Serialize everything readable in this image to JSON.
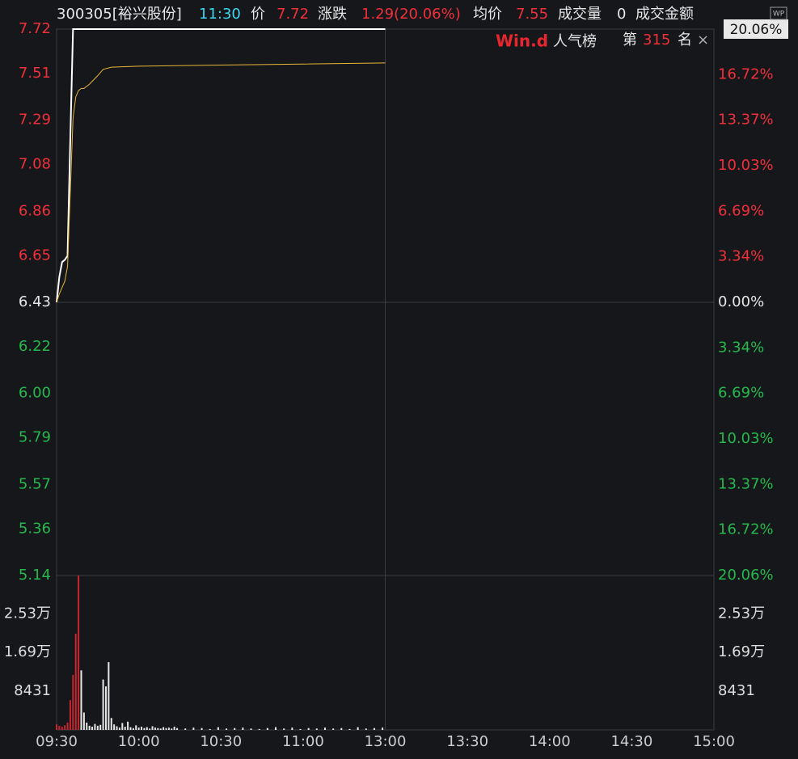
{
  "header": {
    "code": "300305[裕兴股份]",
    "time": "11:30",
    "price_label": "价",
    "price": "7.72",
    "change_label": "涨跌",
    "change": "1.29(20.06%)",
    "avg_label": "均价",
    "avg": "7.55",
    "volume_label": "成交量",
    "volume": "0",
    "amount_label": "成交金额",
    "badge": "20.06%",
    "icon": "WP"
  },
  "ranking": {
    "brand": "Win.d",
    "title": "人气榜",
    "prefix": "第",
    "rank": "315",
    "suffix": "名",
    "close": "×"
  },
  "chart_data": [
    {
      "type": "line",
      "prev_close": 6.43,
      "up_color": "#f0303a",
      "down_color": "#25b84c",
      "flat_color": "#e6e6e6",
      "xlim": [
        0,
        240
      ],
      "xticks": [
        {
          "value": 0,
          "label": "09:30"
        },
        {
          "value": 30,
          "label": "10:00"
        },
        {
          "value": 60,
          "label": "10:30"
        },
        {
          "value": 90,
          "label": "11:00"
        },
        {
          "value": 120,
          "label": "13:00"
        },
        {
          "value": 150,
          "label": "13:30"
        },
        {
          "value": 180,
          "label": "14:00"
        },
        {
          "value": 210,
          "label": "14:30"
        },
        {
          "value": 240,
          "label": "15:00"
        }
      ],
      "ylim": [
        5.14,
        7.72
      ],
      "yticks": [
        7.72,
        7.51,
        7.29,
        7.08,
        6.86,
        6.65,
        6.43,
        6.22,
        {
          "value": 6,
          "label": "6.00"
        },
        5.79,
        5.57,
        5.36,
        5.14
      ],
      "y2lim": [
        -20.06,
        20.06
      ],
      "y2ticks": [
        {
          "value": 16.72,
          "label": "16.72%"
        },
        {
          "value": 13.37,
          "label": "13.37%"
        },
        {
          "value": 10.03,
          "label": "10.03%"
        },
        {
          "value": 6.69,
          "label": "6.69%"
        },
        {
          "value": 3.34,
          "label": "3.34%"
        },
        {
          "value": 0,
          "label": "0.00%"
        },
        {
          "value": -3.34,
          "label": "3.34%"
        },
        {
          "value": -6.69,
          "label": "6.69%"
        },
        {
          "value": -10.03,
          "label": "10.03%"
        },
        {
          "value": -13.37,
          "label": "13.37%"
        },
        {
          "value": -16.72,
          "label": "16.72%"
        },
        {
          "value": -20.06,
          "label": "20.06%"
        }
      ],
      "x": [
        0,
        1,
        2,
        3,
        4,
        5,
        6,
        7,
        8,
        9,
        10,
        12,
        15,
        17,
        20,
        30,
        60,
        90,
        120
      ],
      "series": [
        {
          "color": "#ffffff",
          "values": [
            6.43,
            6.55,
            6.62,
            6.63,
            6.65,
            7.2,
            7.72,
            7.72,
            7.72,
            7.72,
            7.72,
            7.72,
            7.72,
            7.72,
            7.72,
            7.72,
            7.72,
            7.72,
            7.72
          ]
        },
        {
          "color": "#e8b63a",
          "values": [
            6.43,
            6.47,
            6.5,
            6.53,
            6.6,
            6.95,
            7.3,
            7.4,
            7.43,
            7.44,
            7.44,
            7.46,
            7.5,
            7.53,
            7.54,
            7.545,
            7.55,
            7.555,
            7.56
          ]
        }
      ]
    },
    {
      "type": "bar",
      "ylim": [
        0,
        33700
      ],
      "yticks": [
        {
          "value": 25300,
          "label": "2.53万"
        },
        {
          "value": 16900,
          "label": "1.69万"
        },
        8431
      ],
      "series": [
        {
          "color": "#c8262e",
          "x": [
            0,
            1,
            2,
            3,
            4,
            5,
            6,
            7,
            8
          ],
          "values": [
            1200,
            900,
            700,
            1000,
            1600,
            6500,
            12000,
            21000,
            33700
          ]
        },
        {
          "color": "#e8e8e8",
          "x": [
            9,
            10,
            11,
            12,
            13,
            14,
            15,
            16,
            17,
            18,
            19,
            20,
            21,
            22,
            23,
            24,
            25,
            26,
            27,
            28,
            29,
            30,
            31,
            32,
            33,
            34,
            35,
            36,
            37,
            38,
            39,
            40,
            41,
            42,
            43,
            44,
            47,
            50,
            53,
            56,
            59,
            62,
            65,
            68,
            71,
            74,
            77,
            80,
            83,
            86,
            89,
            92,
            95,
            98,
            101,
            104,
            107,
            110,
            113,
            116,
            119
          ],
          "values": [
            13000,
            3800,
            1600,
            900,
            700,
            1300,
            900,
            1100,
            11000,
            9500,
            14800,
            2600,
            1200,
            800,
            500,
            1500,
            700,
            1800,
            600,
            400,
            1000,
            500,
            700,
            400,
            600,
            300,
            800,
            500,
            400,
            300,
            600,
            400,
            500,
            300,
            700,
            400,
            300,
            500,
            400,
            200,
            600,
            300,
            400,
            500,
            300,
            200,
            400,
            600,
            300,
            500,
            200,
            400,
            300,
            500,
            300,
            400,
            200,
            600,
            300,
            400,
            500
          ]
        }
      ]
    }
  ]
}
